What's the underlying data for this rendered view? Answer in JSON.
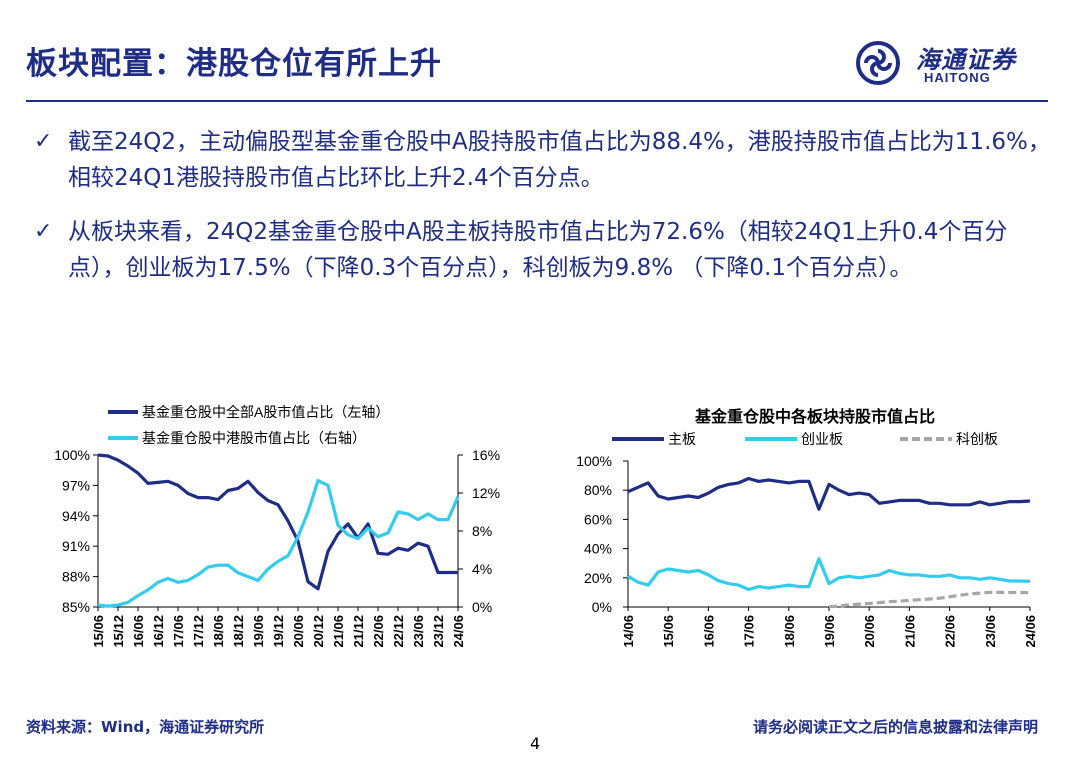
{
  "header": {
    "title": "板块配置：港股仓位有所上升",
    "logo_cn": "海通证券",
    "logo_en": "HAITONG"
  },
  "bullets": [
    {
      "mark": "✓",
      "text": "截至24Q2，主动偏股型基金重仓股中A股持股市值占比为88.4%，港股持股市值占比为11.6%，相较24Q1港股持股市值占比环比上升2.4个百分点。"
    },
    {
      "mark": "✓",
      "text": "从板块来看，24Q2基金重仓股中A股主板持股市值占比为72.6%（相较24Q1上升0.4个百分点），创业板为17.5%（下降0.3个百分点），科创板为9.8% （下降0.1个百分点）。"
    }
  ],
  "footer": {
    "source": "资料来源：Wind，海通证券研究所",
    "disclaimer": "请务必阅读正文之后的信息披露和法律声明",
    "page": "4"
  },
  "colors": {
    "brand": "#1f2d86",
    "series_dark": "#1f2d86",
    "series_light": "#33ccee",
    "series_gray": "#a6a6a6"
  },
  "chart_data": [
    {
      "type": "line",
      "title": "",
      "x": [
        "15/06",
        "15/09",
        "15/12",
        "16/03",
        "16/06",
        "16/09",
        "16/12",
        "17/03",
        "17/06",
        "17/09",
        "17/12",
        "18/03",
        "18/06",
        "18/09",
        "18/12",
        "19/03",
        "19/06",
        "19/09",
        "19/12",
        "20/03",
        "20/06",
        "20/09",
        "20/12",
        "21/03",
        "21/06",
        "21/09",
        "21/12",
        "22/03",
        "22/06",
        "22/09",
        "22/12",
        "23/03",
        "23/06",
        "23/09",
        "23/12",
        "24/03",
        "24/06"
      ],
      "xticks": [
        "15/06",
        "15/12",
        "16/06",
        "16/12",
        "17/06",
        "17/12",
        "18/06",
        "18/12",
        "19/06",
        "19/12",
        "20/06",
        "20/12",
        "21/06",
        "21/12",
        "22/06",
        "22/12",
        "23/06",
        "23/12",
        "24/06"
      ],
      "y_left": {
        "ylim": [
          85,
          100
        ],
        "ticks": [
          "100%",
          "97%",
          "94%",
          "91%",
          "88%",
          "85%"
        ],
        "tick_values": [
          100,
          97,
          94,
          91,
          88,
          85
        ]
      },
      "y_right": {
        "ylim": [
          0,
          16
        ],
        "ticks": [
          "16%",
          "12%",
          "8%",
          "4%",
          "0%"
        ],
        "tick_values": [
          16,
          12,
          8,
          4,
          0
        ]
      },
      "legend_position": "top-left",
      "series": [
        {
          "name": "基金重仓股中全部A股市值占比（左轴）",
          "axis": "left",
          "color": "#1f2d86",
          "values": [
            100,
            99.9,
            99.5,
            98.9,
            98.2,
            97.2,
            97.3,
            97.4,
            97.0,
            96.2,
            95.8,
            95.8,
            95.6,
            96.5,
            96.7,
            97.4,
            96.3,
            95.5,
            95.1,
            93.5,
            91.5,
            87.5,
            86.8,
            90.5,
            92.2,
            93.2,
            91.8,
            93.2,
            90.3,
            90.2,
            90.8,
            90.6,
            91.3,
            91.0,
            88.4,
            88.4,
            88.4
          ]
        },
        {
          "name": "基金重仓股中港股市值占比（右轴）",
          "axis": "right",
          "color": "#33ccee",
          "values": [
            0.2,
            0.1,
            0.2,
            0.5,
            1.2,
            1.8,
            2.6,
            3.0,
            2.6,
            2.8,
            3.4,
            4.2,
            4.4,
            4.4,
            3.6,
            3.2,
            2.8,
            4.0,
            4.8,
            5.4,
            7.4,
            10.0,
            13.3,
            12.8,
            8.6,
            7.6,
            7.2,
            8.3,
            7.4,
            7.8,
            10.0,
            9.8,
            9.2,
            9.8,
            9.2,
            9.2,
            11.6
          ]
        }
      ]
    },
    {
      "type": "line",
      "title": "基金重仓股中各板块持股市值占比",
      "x": [
        "14/06",
        "14/09",
        "14/12",
        "15/03",
        "15/06",
        "15/09",
        "15/12",
        "16/03",
        "16/06",
        "16/09",
        "16/12",
        "17/03",
        "17/06",
        "17/09",
        "17/12",
        "18/03",
        "18/06",
        "18/09",
        "18/12",
        "19/03",
        "19/06",
        "19/09",
        "19/12",
        "20/03",
        "20/06",
        "20/09",
        "20/12",
        "21/03",
        "21/06",
        "21/09",
        "21/12",
        "22/03",
        "22/06",
        "22/09",
        "22/12",
        "23/03",
        "23/06",
        "23/09",
        "23/12",
        "24/03",
        "24/06"
      ],
      "xticks": [
        "14/06",
        "15/06",
        "16/06",
        "17/06",
        "18/06",
        "19/06",
        "20/06",
        "21/06",
        "22/06",
        "23/06",
        "24/06"
      ],
      "ylim": [
        0,
        100
      ],
      "yticks": [
        "100%",
        "80%",
        "60%",
        "40%",
        "20%",
        "0%"
      ],
      "ytick_values": [
        100,
        80,
        60,
        40,
        20,
        0
      ],
      "legend_position": "top",
      "series": [
        {
          "name": "主板",
          "color": "#1f2d86",
          "dash": false,
          "values": [
            79,
            82,
            85,
            76,
            74,
            75,
            76,
            75,
            78,
            82,
            84,
            85,
            88,
            86,
            87,
            86,
            85,
            86,
            86,
            67,
            84,
            80,
            77,
            78,
            77,
            71,
            72,
            73,
            73,
            73,
            71,
            71,
            70,
            70,
            70,
            72,
            70,
            71,
            72.2,
            72.2,
            72.6
          ]
        },
        {
          "name": "创业板",
          "color": "#33ccee",
          "dash": false,
          "values": [
            21,
            17,
            15,
            24,
            26,
            25,
            24,
            25,
            22,
            18,
            16,
            15,
            12,
            14,
            13,
            14,
            15,
            14,
            14,
            33,
            16,
            20,
            21,
            20,
            21,
            22,
            25,
            23,
            22,
            22,
            21,
            21,
            22,
            20,
            20,
            19,
            20,
            19,
            17.8,
            17.8,
            17.5
          ]
        },
        {
          "name": "科创板",
          "color": "#a6a6a6",
          "dash": true,
          "start_index": 20,
          "values": [
            null,
            null,
            null,
            null,
            null,
            null,
            null,
            null,
            null,
            null,
            null,
            null,
            null,
            null,
            null,
            null,
            null,
            null,
            null,
            null,
            0.2,
            0.6,
            1.5,
            2.0,
            2.4,
            3.0,
            3.6,
            4.0,
            4.5,
            5.0,
            5.5,
            6.0,
            7.0,
            8.0,
            9.0,
            9.5,
            10.0,
            10.0,
            9.9,
            9.9,
            9.8
          ]
        }
      ]
    }
  ]
}
